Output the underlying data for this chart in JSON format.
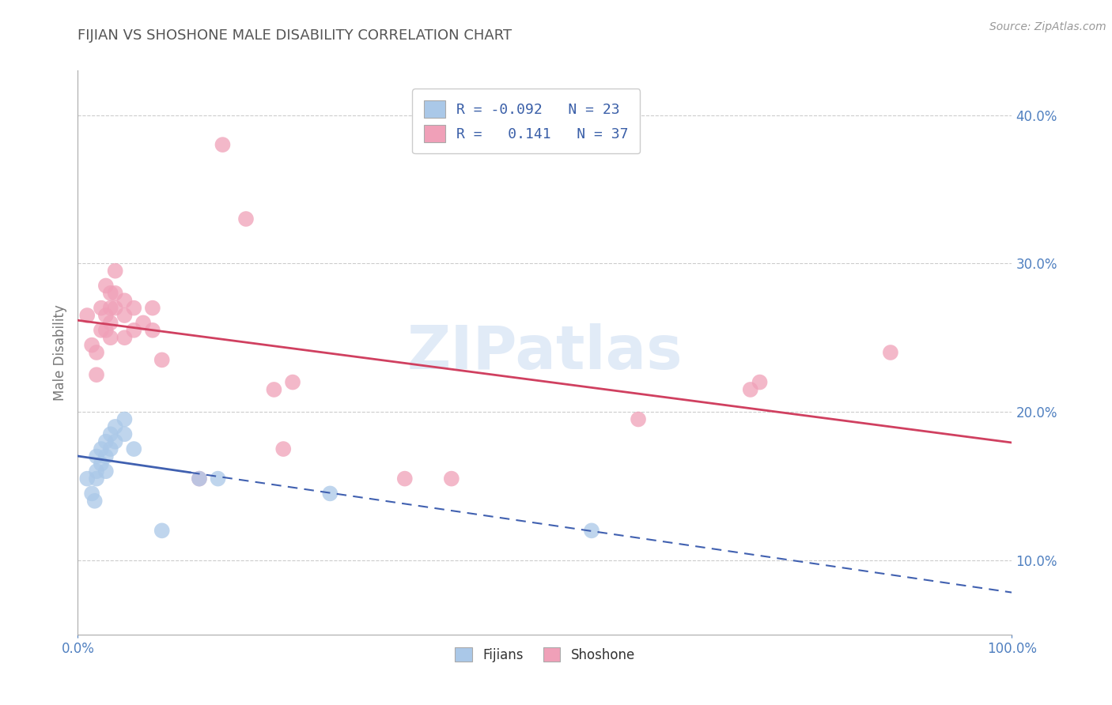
{
  "title": "FIJIAN VS SHOSHONE MALE DISABILITY CORRELATION CHART",
  "source": "Source: ZipAtlas.com",
  "ylabel_label": "Male Disability",
  "xlim": [
    0.0,
    1.0
  ],
  "ylim": [
    0.05,
    0.43
  ],
  "y_ticks": [
    0.1,
    0.2,
    0.3,
    0.4
  ],
  "y_tick_labels": [
    "10.0%",
    "20.0%",
    "30.0%",
    "40.0%"
  ],
  "fijian_color": "#aac8e8",
  "shoshone_color": "#f0a0b8",
  "fijian_line_color": "#4060b0",
  "shoshone_line_color": "#d04060",
  "fijian_points": [
    [
      0.01,
      0.155
    ],
    [
      0.015,
      0.145
    ],
    [
      0.018,
      0.14
    ],
    [
      0.02,
      0.17
    ],
    [
      0.02,
      0.16
    ],
    [
      0.02,
      0.155
    ],
    [
      0.025,
      0.175
    ],
    [
      0.025,
      0.165
    ],
    [
      0.03,
      0.18
    ],
    [
      0.03,
      0.17
    ],
    [
      0.03,
      0.16
    ],
    [
      0.035,
      0.185
    ],
    [
      0.035,
      0.175
    ],
    [
      0.04,
      0.19
    ],
    [
      0.04,
      0.18
    ],
    [
      0.05,
      0.195
    ],
    [
      0.05,
      0.185
    ],
    [
      0.06,
      0.175
    ],
    [
      0.09,
      0.12
    ],
    [
      0.13,
      0.155
    ],
    [
      0.15,
      0.155
    ],
    [
      0.27,
      0.145
    ],
    [
      0.55,
      0.12
    ]
  ],
  "shoshone_points": [
    [
      0.01,
      0.265
    ],
    [
      0.015,
      0.245
    ],
    [
      0.02,
      0.24
    ],
    [
      0.02,
      0.225
    ],
    [
      0.025,
      0.27
    ],
    [
      0.025,
      0.255
    ],
    [
      0.03,
      0.285
    ],
    [
      0.03,
      0.265
    ],
    [
      0.03,
      0.255
    ],
    [
      0.035,
      0.28
    ],
    [
      0.035,
      0.27
    ],
    [
      0.035,
      0.26
    ],
    [
      0.035,
      0.25
    ],
    [
      0.04,
      0.295
    ],
    [
      0.04,
      0.28
    ],
    [
      0.04,
      0.27
    ],
    [
      0.05,
      0.275
    ],
    [
      0.05,
      0.265
    ],
    [
      0.05,
      0.25
    ],
    [
      0.06,
      0.27
    ],
    [
      0.06,
      0.255
    ],
    [
      0.07,
      0.26
    ],
    [
      0.08,
      0.27
    ],
    [
      0.08,
      0.255
    ],
    [
      0.09,
      0.235
    ],
    [
      0.13,
      0.155
    ],
    [
      0.155,
      0.38
    ],
    [
      0.18,
      0.33
    ],
    [
      0.21,
      0.215
    ],
    [
      0.22,
      0.175
    ],
    [
      0.23,
      0.22
    ],
    [
      0.35,
      0.155
    ],
    [
      0.4,
      0.155
    ],
    [
      0.6,
      0.195
    ],
    [
      0.72,
      0.215
    ],
    [
      0.73,
      0.22
    ],
    [
      0.87,
      0.24
    ]
  ],
  "watermark": "ZIPatlas",
  "background_color": "#ffffff",
  "grid_color": "#cccccc",
  "title_color": "#555555",
  "axis_color": "#5080c0",
  "legend_text_color": "#3a5fa8"
}
